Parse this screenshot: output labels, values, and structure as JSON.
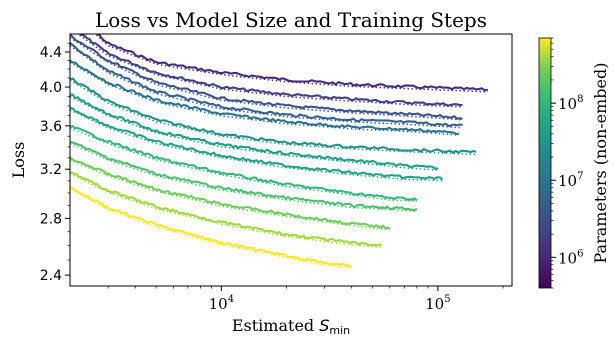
{
  "chart_data": {
    "type": "line",
    "title": "Loss vs Model Size and Training Steps",
    "xlabel_prefix": "Estimated ",
    "xlabel_var": "S",
    "xlabel_sub": "min",
    "ylabel": "Loss",
    "x_scale": "log",
    "y_scale": "log",
    "xlim": [
      2000,
      220000
    ],
    "ylim": [
      2.33,
      4.62
    ],
    "x_ticks": [
      {
        "value": 10000,
        "base": "10",
        "exp": "4"
      },
      {
        "value": 100000,
        "base": "10",
        "exp": "5"
      }
    ],
    "y_ticks": [
      {
        "value": 2.4,
        "label": "2.4"
      },
      {
        "value": 2.8,
        "label": "2.8"
      },
      {
        "value": 3.2,
        "label": "3.2"
      },
      {
        "value": 3.6,
        "label": "3.6"
      },
      {
        "value": 4.0,
        "label": "4.0"
      },
      {
        "value": 4.4,
        "label": "4.4"
      }
    ],
    "colorbar": {
      "label": "Parameters (non-embed)",
      "scale": "log",
      "range": [
        400000,
        700000000
      ],
      "ticks": [
        {
          "value": 1000000,
          "base": "10",
          "exp": "6"
        },
        {
          "value": 10000000,
          "base": "10",
          "exp": "7"
        },
        {
          "value": 100000000,
          "base": "10",
          "exp": "8"
        }
      ]
    },
    "line_style": "solid = empirical, dotted = fit",
    "series": [
      {
        "color": "#472c7a",
        "x_end": 170000,
        "points": [
          [
            2000,
            4.95
          ],
          [
            3000,
            4.5
          ],
          [
            5000,
            4.28
          ],
          [
            10000,
            4.16
          ],
          [
            20000,
            4.08
          ],
          [
            40000,
            4.03
          ],
          [
            80000,
            4.0
          ],
          [
            170000,
            3.97
          ]
        ]
      },
      {
        "color": "#433e85",
        "x_end": 130000,
        "points": [
          [
            2000,
            4.72
          ],
          [
            3000,
            4.38
          ],
          [
            5000,
            4.16
          ],
          [
            10000,
            4.0
          ],
          [
            20000,
            3.92
          ],
          [
            40000,
            3.87
          ],
          [
            80000,
            3.83
          ],
          [
            130000,
            3.81
          ]
        ]
      },
      {
        "color": "#3b528b",
        "x_end": 130000,
        "points": [
          [
            2000,
            4.6
          ],
          [
            3000,
            4.3
          ],
          [
            5000,
            4.05
          ],
          [
            10000,
            3.88
          ],
          [
            20000,
            3.8
          ],
          [
            40000,
            3.75
          ],
          [
            80000,
            3.71
          ],
          [
            130000,
            3.68
          ]
        ]
      },
      {
        "color": "#355f8d",
        "x_end": 130000,
        "points": [
          [
            2000,
            4.5
          ],
          [
            3000,
            4.18
          ],
          [
            5000,
            3.95
          ],
          [
            10000,
            3.79
          ],
          [
            20000,
            3.71
          ],
          [
            40000,
            3.66
          ],
          [
            80000,
            3.63
          ],
          [
            130000,
            3.6
          ]
        ]
      },
      {
        "color": "#2c718e",
        "x_end": 125000,
        "points": [
          [
            2000,
            4.3
          ],
          [
            3000,
            4.05
          ],
          [
            5000,
            3.86
          ],
          [
            10000,
            3.72
          ],
          [
            20000,
            3.64
          ],
          [
            40000,
            3.59
          ],
          [
            80000,
            3.56
          ],
          [
            125000,
            3.53
          ]
        ]
      },
      {
        "color": "#21918c",
        "x_end": 150000,
        "points": [
          [
            2000,
            4.1
          ],
          [
            3000,
            3.85
          ],
          [
            5000,
            3.66
          ],
          [
            10000,
            3.52
          ],
          [
            20000,
            3.44
          ],
          [
            40000,
            3.4
          ],
          [
            80000,
            3.37
          ],
          [
            150000,
            3.35
          ]
        ]
      },
      {
        "color": "#1f9e89",
        "x_end": 100000,
        "points": [
          [
            2000,
            3.92
          ],
          [
            3000,
            3.72
          ],
          [
            5000,
            3.55
          ],
          [
            10000,
            3.42
          ],
          [
            20000,
            3.34
          ],
          [
            40000,
            3.28
          ],
          [
            70000,
            3.23
          ],
          [
            100000,
            3.21
          ]
        ]
      },
      {
        "color": "#20a386",
        "x_end": 105000,
        "points": [
          [
            2000,
            3.78
          ],
          [
            3000,
            3.6
          ],
          [
            5000,
            3.45
          ],
          [
            10000,
            3.32
          ],
          [
            20000,
            3.23
          ],
          [
            40000,
            3.17
          ],
          [
            70000,
            3.13
          ],
          [
            105000,
            3.12
          ]
        ]
      },
      {
        "color": "#35b779",
        "x_end": 80000,
        "points": [
          [
            2000,
            3.6
          ],
          [
            3000,
            3.45
          ],
          [
            5000,
            3.3
          ],
          [
            10000,
            3.17
          ],
          [
            20000,
            3.07
          ],
          [
            40000,
            3.0
          ],
          [
            60000,
            2.96
          ],
          [
            80000,
            2.95
          ]
        ]
      },
      {
        "color": "#4ac16d",
        "x_end": 80000,
        "points": [
          [
            2000,
            3.45
          ],
          [
            3000,
            3.3
          ],
          [
            5000,
            3.16
          ],
          [
            10000,
            3.04
          ],
          [
            20000,
            2.96
          ],
          [
            40000,
            2.9
          ],
          [
            80000,
            2.87
          ]
        ]
      },
      {
        "color": "#6ece58",
        "x_end": 60000,
        "points": [
          [
            2000,
            3.3
          ],
          [
            3000,
            3.16
          ],
          [
            5000,
            3.03
          ],
          [
            10000,
            2.91
          ],
          [
            20000,
            2.83
          ],
          [
            40000,
            2.76
          ],
          [
            60000,
            2.73
          ]
        ]
      },
      {
        "color": "#9fda3a",
        "x_end": 55000,
        "points": [
          [
            2000,
            3.18
          ],
          [
            3000,
            3.02
          ],
          [
            5000,
            2.89
          ],
          [
            10000,
            2.77
          ],
          [
            20000,
            2.68
          ],
          [
            40000,
            2.62
          ],
          [
            55000,
            2.6
          ]
        ]
      },
      {
        "color": "#fde725",
        "x_end": 40000,
        "points": [
          [
            2000,
            3.05
          ],
          [
            3000,
            2.88
          ],
          [
            5000,
            2.75
          ],
          [
            10000,
            2.62
          ],
          [
            20000,
            2.53
          ],
          [
            30000,
            2.48
          ],
          [
            40000,
            2.46
          ]
        ]
      }
    ]
  }
}
